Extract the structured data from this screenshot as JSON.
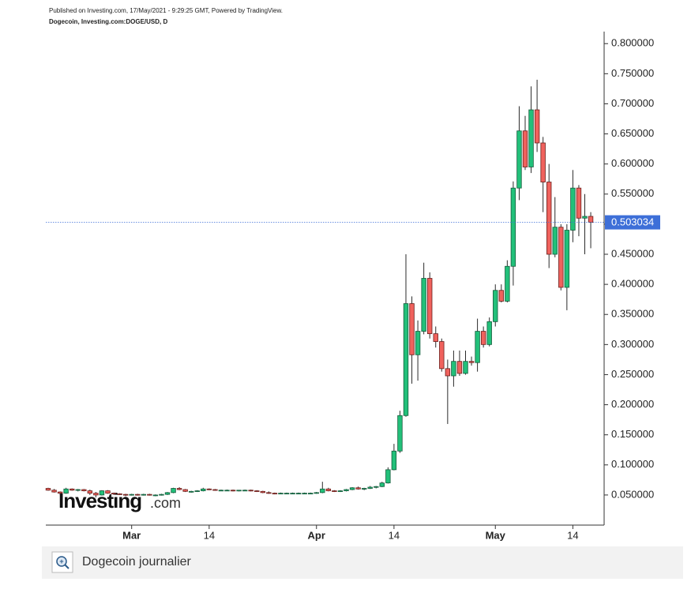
{
  "header": {
    "published": "Published on Investing.com, 17/May/2021 - 9:29:25 GMT, Powered by TradingView.",
    "symbol": "Dogecoin, Investing.com:DOGE/USD, D"
  },
  "chart_data": {
    "type": "candlestick",
    "watermark_name": "Investing",
    "watermark_suffix": ".com",
    "x": [
      "2021-02-15",
      "2021-02-16",
      "2021-02-17",
      "2021-02-18",
      "2021-02-19",
      "2021-02-20",
      "2021-02-21",
      "2021-02-22",
      "2021-02-23",
      "2021-02-24",
      "2021-02-25",
      "2021-02-26",
      "2021-02-27",
      "2021-02-28",
      "2021-03-01",
      "2021-03-02",
      "2021-03-03",
      "2021-03-04",
      "2021-03-05",
      "2021-03-06",
      "2021-03-07",
      "2021-03-08",
      "2021-03-09",
      "2021-03-10",
      "2021-03-11",
      "2021-03-12",
      "2021-03-13",
      "2021-03-14",
      "2021-03-15",
      "2021-03-16",
      "2021-03-17",
      "2021-03-18",
      "2021-03-19",
      "2021-03-20",
      "2021-03-21",
      "2021-03-22",
      "2021-03-23",
      "2021-03-24",
      "2021-03-25",
      "2021-03-26",
      "2021-03-27",
      "2021-03-28",
      "2021-03-29",
      "2021-03-30",
      "2021-03-31",
      "2021-04-01",
      "2021-04-02",
      "2021-04-03",
      "2021-04-04",
      "2021-04-05",
      "2021-04-06",
      "2021-04-07",
      "2021-04-08",
      "2021-04-09",
      "2021-04-10",
      "2021-04-11",
      "2021-04-12",
      "2021-04-13",
      "2021-04-14",
      "2021-04-15",
      "2021-04-16",
      "2021-04-17",
      "2021-04-18",
      "2021-04-19",
      "2021-04-20",
      "2021-04-21",
      "2021-04-22",
      "2021-04-23",
      "2021-04-24",
      "2021-04-25",
      "2021-04-26",
      "2021-04-27",
      "2021-04-28",
      "2021-04-29",
      "2021-04-30",
      "2021-05-01",
      "2021-05-02",
      "2021-05-03",
      "2021-05-04",
      "2021-05-05",
      "2021-05-06",
      "2021-05-07",
      "2021-05-08",
      "2021-05-09",
      "2021-05-10",
      "2021-05-11",
      "2021-05-12",
      "2021-05-13",
      "2021-05-14",
      "2021-05-15",
      "2021-05-16",
      "2021-05-17"
    ],
    "open": [
      0.061,
      0.058,
      0.055,
      0.053,
      0.06,
      0.058,
      0.059,
      0.057,
      0.053,
      0.05,
      0.057,
      0.053,
      0.052,
      0.051,
      0.05,
      0.051,
      0.05,
      0.051,
      0.05,
      0.05,
      0.051,
      0.054,
      0.061,
      0.059,
      0.056,
      0.056,
      0.057,
      0.06,
      0.059,
      0.058,
      0.058,
      0.058,
      0.057,
      0.058,
      0.058,
      0.057,
      0.056,
      0.054,
      0.053,
      0.052,
      0.053,
      0.053,
      0.053,
      0.053,
      0.053,
      0.053,
      0.054,
      0.06,
      0.057,
      0.056,
      0.057,
      0.059,
      0.062,
      0.06,
      0.061,
      0.063,
      0.064,
      0.07,
      0.092,
      0.123,
      0.182,
      0.368,
      0.283,
      0.322,
      0.41,
      0.318,
      0.305,
      0.26,
      0.248,
      0.272,
      0.252,
      0.272,
      0.27,
      0.322,
      0.3,
      0.338,
      0.39,
      0.372,
      0.43,
      0.56,
      0.655,
      0.595,
      0.69,
      0.635,
      0.57,
      0.45,
      0.495,
      0.395,
      0.49,
      0.56,
      0.51,
      0.513
    ],
    "high": [
      0.062,
      0.06,
      0.056,
      0.062,
      0.061,
      0.06,
      0.06,
      0.059,
      0.055,
      0.058,
      0.058,
      0.054,
      0.053,
      0.052,
      0.052,
      0.052,
      0.052,
      0.052,
      0.051,
      0.052,
      0.055,
      0.062,
      0.063,
      0.06,
      0.057,
      0.058,
      0.062,
      0.061,
      0.06,
      0.059,
      0.059,
      0.059,
      0.058,
      0.059,
      0.059,
      0.058,
      0.057,
      0.056,
      0.054,
      0.054,
      0.054,
      0.054,
      0.054,
      0.054,
      0.054,
      0.055,
      0.072,
      0.062,
      0.058,
      0.058,
      0.06,
      0.063,
      0.064,
      0.062,
      0.065,
      0.065,
      0.072,
      0.096,
      0.135,
      0.19,
      0.45,
      0.38,
      0.34,
      0.436,
      0.42,
      0.33,
      0.31,
      0.275,
      0.29,
      0.29,
      0.29,
      0.28,
      0.343,
      0.33,
      0.345,
      0.4,
      0.4,
      0.44,
      0.571,
      0.696,
      0.68,
      0.729,
      0.74,
      0.645,
      0.6,
      0.545,
      0.5,
      0.5,
      0.59,
      0.565,
      0.55,
      0.52
    ],
    "low": [
      0.057,
      0.054,
      0.05,
      0.052,
      0.057,
      0.056,
      0.056,
      0.05,
      0.046,
      0.049,
      0.052,
      0.05,
      0.05,
      0.048,
      0.049,
      0.049,
      0.049,
      0.049,
      0.048,
      0.049,
      0.05,
      0.053,
      0.058,
      0.055,
      0.054,
      0.055,
      0.056,
      0.058,
      0.057,
      0.057,
      0.057,
      0.056,
      0.056,
      0.057,
      0.056,
      0.055,
      0.053,
      0.052,
      0.051,
      0.052,
      0.052,
      0.052,
      0.052,
      0.052,
      0.052,
      0.052,
      0.053,
      0.056,
      0.055,
      0.055,
      0.056,
      0.058,
      0.059,
      0.058,
      0.06,
      0.061,
      0.063,
      0.069,
      0.091,
      0.12,
      0.18,
      0.235,
      0.24,
      0.317,
      0.31,
      0.295,
      0.255,
      0.168,
      0.23,
      0.248,
      0.25,
      0.265,
      0.255,
      0.295,
      0.297,
      0.33,
      0.37,
      0.37,
      0.398,
      0.54,
      0.59,
      0.585,
      0.62,
      0.52,
      0.427,
      0.445,
      0.39,
      0.357,
      0.47,
      0.48,
      0.45,
      0.46
    ],
    "close": [
      0.058,
      0.055,
      0.053,
      0.06,
      0.058,
      0.059,
      0.057,
      0.053,
      0.05,
      0.057,
      0.053,
      0.052,
      0.051,
      0.05,
      0.051,
      0.05,
      0.051,
      0.05,
      0.05,
      0.051,
      0.054,
      0.061,
      0.059,
      0.056,
      0.056,
      0.057,
      0.06,
      0.059,
      0.058,
      0.058,
      0.058,
      0.057,
      0.058,
      0.058,
      0.057,
      0.056,
      0.054,
      0.053,
      0.052,
      0.053,
      0.053,
      0.053,
      0.053,
      0.053,
      0.053,
      0.054,
      0.06,
      0.057,
      0.056,
      0.057,
      0.059,
      0.062,
      0.06,
      0.061,
      0.063,
      0.064,
      0.07,
      0.092,
      0.123,
      0.182,
      0.368,
      0.283,
      0.322,
      0.41,
      0.318,
      0.305,
      0.26,
      0.248,
      0.272,
      0.252,
      0.272,
      0.27,
      0.322,
      0.3,
      0.338,
      0.39,
      0.372,
      0.43,
      0.56,
      0.655,
      0.595,
      0.69,
      0.635,
      0.57,
      0.45,
      0.495,
      0.395,
      0.49,
      0.56,
      0.51,
      0.513,
      0.503034
    ],
    "up_color": "#22c07a",
    "down_color": "#f0625d",
    "price_line_color": "#3d6fd8",
    "ylim": [
      0,
      0.82
    ],
    "yticks": [
      {
        "value": 0.05,
        "label": "0.050000"
      },
      {
        "value": 0.1,
        "label": "0.100000"
      },
      {
        "value": 0.15,
        "label": "0.150000"
      },
      {
        "value": 0.2,
        "label": "0.200000"
      },
      {
        "value": 0.25,
        "label": "0.250000"
      },
      {
        "value": 0.3,
        "label": "0.300000"
      },
      {
        "value": 0.35,
        "label": "0.350000"
      },
      {
        "value": 0.4,
        "label": "0.400000"
      },
      {
        "value": 0.45,
        "label": "0.450000"
      },
      {
        "value": 0.5,
        "label": "0.500000"
      },
      {
        "value": 0.55,
        "label": "0.550000"
      },
      {
        "value": 0.6,
        "label": "0.600000"
      },
      {
        "value": 0.65,
        "label": "0.650000"
      },
      {
        "value": 0.7,
        "label": "0.700000"
      },
      {
        "value": 0.75,
        "label": "0.750000"
      },
      {
        "value": 0.8,
        "label": "0.800000"
      }
    ],
    "xticks": [
      {
        "value": "2021-03-01",
        "label": "Mar"
      },
      {
        "value": "2021-03-14",
        "label": "14"
      },
      {
        "value": "2021-04-01",
        "label": "Apr"
      },
      {
        "value": "2021-04-14",
        "label": "14"
      },
      {
        "value": "2021-05-01",
        "label": "May"
      },
      {
        "value": "2021-05-14",
        "label": "14"
      }
    ]
  },
  "footer": {
    "caption": "Dogecoin journalier"
  }
}
